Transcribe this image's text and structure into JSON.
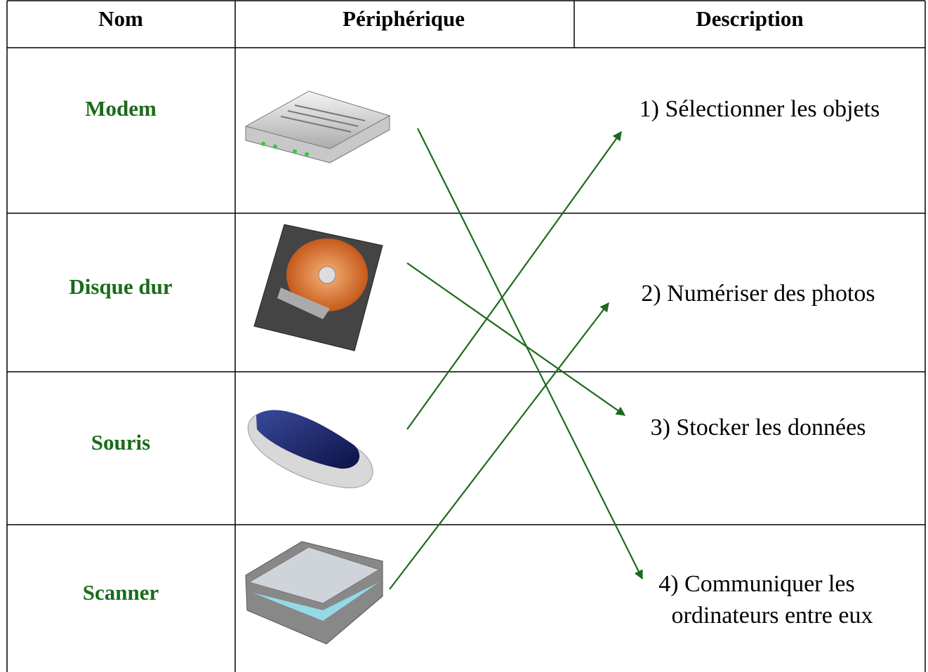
{
  "header": {
    "columns": [
      "Nom",
      "Périphérique",
      "Description"
    ]
  },
  "table": {
    "rows": [
      {
        "name": "Modem",
        "description": [
          "1)  Sélectionner les objets"
        ]
      },
      {
        "name": "Disque dur",
        "description": [
          "2)  Numériser des photos"
        ]
      },
      {
        "name": "Souris",
        "description": [
          "3)  Stocker les données"
        ]
      },
      {
        "name": "Scanner",
        "description": [
          "4)  Communiquer les",
          "ordinateurs entre eux"
        ]
      }
    ]
  }
}
